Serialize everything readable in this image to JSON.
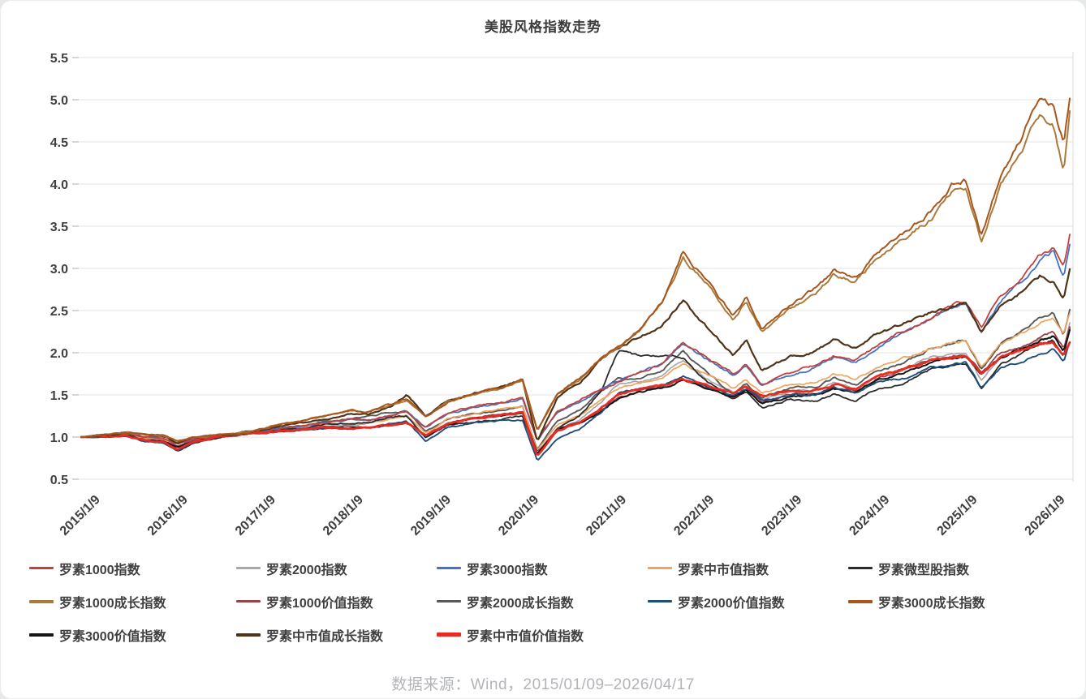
{
  "title": "美股风格指数走势",
  "footer": "数据来源：Wind，2015/01/09–2026/04/17",
  "colors": {
    "title_text": "#3c3c3c",
    "axis_text": "#3f3f3f",
    "gridline": "#e3e3e3",
    "axis_tick": "#c9c9c9",
    "plot_right_border": "#dcdcdc",
    "legend_text": "#3f3f3f",
    "footer_text": "#b2b4b8",
    "background": "#ffffff"
  },
  "chart_data": {
    "type": "line",
    "title": "美股风格指数走势",
    "xlabel": "",
    "ylabel": "",
    "ylim": [
      0.5,
      5.5
    ],
    "y_ticks": [
      0.5,
      1.0,
      1.5,
      2.0,
      2.5,
      3.0,
      3.5,
      4.0,
      4.5,
      5.0,
      5.5
    ],
    "x_range": [
      2015.02,
      2026.29
    ],
    "grid": "horizontal",
    "legend_position": "bottom",
    "x_ticks": [
      {
        "label": "2015/1/9",
        "t": 2015.02
      },
      {
        "label": "2016/1/9",
        "t": 2016.02
      },
      {
        "label": "2017/1/9",
        "t": 2017.02
      },
      {
        "label": "2018/1/9",
        "t": 2018.02
      },
      {
        "label": "2019/1/9",
        "t": 2019.02
      },
      {
        "label": "2020/1/9",
        "t": 2020.02
      },
      {
        "label": "2021/1/9",
        "t": 2021.02
      },
      {
        "label": "2022/1/9",
        "t": 2022.02
      },
      {
        "label": "2023/1/9",
        "t": 2023.02
      },
      {
        "label": "2024/1/9",
        "t": 2024.02
      },
      {
        "label": "2025/1/9",
        "t": 2025.02
      },
      {
        "label": "2026/1/9",
        "t": 2026.02
      }
    ],
    "keypoint_times": [
      2015.02,
      2015.3,
      2015.55,
      2015.75,
      2015.95,
      2016.12,
      2016.3,
      2016.6,
      2016.9,
      2017.2,
      2017.5,
      2017.8,
      2018.1,
      2018.3,
      2018.55,
      2018.73,
      2018.95,
      2019.2,
      2019.5,
      2019.8,
      2020.05,
      2020.22,
      2020.45,
      2020.7,
      2020.95,
      2021.15,
      2021.4,
      2021.65,
      2021.88,
      2022.1,
      2022.45,
      2022.6,
      2022.78,
      2023.1,
      2023.4,
      2023.6,
      2023.85,
      2024.1,
      2024.4,
      2024.7,
      2024.95,
      2025.1,
      2025.28,
      2025.5,
      2025.75,
      2025.95,
      2026.1,
      2026.22,
      2026.29
    ],
    "series": [
      {
        "name": "罗素1000指数",
        "color": "#C0413D",
        "width": 1.8,
        "z": 8,
        "values": [
          1.0,
          1.02,
          1.04,
          1.0,
          0.99,
          0.92,
          0.98,
          1.01,
          1.03,
          1.09,
          1.13,
          1.17,
          1.21,
          1.2,
          1.26,
          1.3,
          1.12,
          1.29,
          1.36,
          1.41,
          1.47,
          0.97,
          1.31,
          1.43,
          1.58,
          1.67,
          1.78,
          1.88,
          2.12,
          1.98,
          1.75,
          1.87,
          1.63,
          1.76,
          1.86,
          1.97,
          1.91,
          2.1,
          2.26,
          2.4,
          2.56,
          2.6,
          2.28,
          2.66,
          2.9,
          3.16,
          3.25,
          2.98,
          3.38
        ]
      },
      {
        "name": "罗素2000指数",
        "color": "#A8A8A8",
        "width": 1.7,
        "z": 0,
        "values": [
          1.0,
          1.03,
          1.04,
          0.97,
          0.95,
          0.84,
          0.94,
          1.0,
          1.06,
          1.09,
          1.1,
          1.14,
          1.15,
          1.17,
          1.23,
          1.26,
          1.0,
          1.17,
          1.22,
          1.25,
          1.29,
          0.78,
          1.08,
          1.2,
          1.42,
          1.62,
          1.66,
          1.72,
          1.9,
          1.72,
          1.52,
          1.62,
          1.45,
          1.55,
          1.56,
          1.65,
          1.58,
          1.72,
          1.8,
          1.95,
          1.98,
          2.0,
          1.68,
          1.95,
          2.05,
          2.15,
          2.2,
          2.0,
          2.35
        ]
      },
      {
        "name": "罗素3000指数",
        "color": "#4472C4",
        "width": 1.8,
        "z": 7,
        "values": [
          1.0,
          1.02,
          1.04,
          1.0,
          0.99,
          0.92,
          0.98,
          1.01,
          1.03,
          1.09,
          1.13,
          1.17,
          1.21,
          1.2,
          1.26,
          1.3,
          1.12,
          1.28,
          1.35,
          1.4,
          1.46,
          0.96,
          1.3,
          1.42,
          1.57,
          1.66,
          1.77,
          1.87,
          2.1,
          1.96,
          1.73,
          1.85,
          1.61,
          1.74,
          1.84,
          1.95,
          1.89,
          2.08,
          2.23,
          2.37,
          2.52,
          2.56,
          2.24,
          2.62,
          2.86,
          3.1,
          3.2,
          2.92,
          3.3
        ]
      },
      {
        "name": "罗素中市值指数",
        "color": "#EFA35D",
        "width": 1.7,
        "z": 2,
        "values": [
          1.0,
          1.02,
          1.03,
          0.98,
          0.97,
          0.88,
          0.96,
          1.0,
          1.04,
          1.08,
          1.1,
          1.14,
          1.16,
          1.16,
          1.22,
          1.25,
          1.05,
          1.22,
          1.29,
          1.33,
          1.38,
          0.84,
          1.15,
          1.26,
          1.44,
          1.58,
          1.65,
          1.72,
          1.88,
          1.76,
          1.58,
          1.68,
          1.52,
          1.62,
          1.64,
          1.74,
          1.68,
          1.83,
          1.93,
          2.05,
          2.12,
          2.15,
          1.85,
          2.1,
          2.22,
          2.35,
          2.42,
          2.22,
          2.46
        ]
      },
      {
        "name": "罗素微型股指数",
        "color": "#2B2B2B",
        "width": 1.8,
        "z": 3,
        "values": [
          1.0,
          1.03,
          1.04,
          0.96,
          0.94,
          0.83,
          0.93,
          0.99,
          1.06,
          1.09,
          1.1,
          1.15,
          1.16,
          1.18,
          1.24,
          1.26,
          1.0,
          1.15,
          1.18,
          1.2,
          1.25,
          0.78,
          1.1,
          1.25,
          1.55,
          2.02,
          1.95,
          1.98,
          1.95,
          1.7,
          1.45,
          1.55,
          1.35,
          1.45,
          1.42,
          1.5,
          1.44,
          1.58,
          1.65,
          1.8,
          1.85,
          1.88,
          1.58,
          1.85,
          1.98,
          2.1,
          2.15,
          1.95,
          2.3
        ]
      },
      {
        "name": "罗素1000成长指数",
        "color": "#AA7B3C",
        "width": 2.0,
        "z": 11,
        "values": [
          1.0,
          1.03,
          1.06,
          1.03,
          1.02,
          0.95,
          1.0,
          1.03,
          1.05,
          1.13,
          1.19,
          1.25,
          1.31,
          1.3,
          1.38,
          1.44,
          1.24,
          1.42,
          1.5,
          1.57,
          1.68,
          1.08,
          1.52,
          1.68,
          1.92,
          2.05,
          2.28,
          2.6,
          3.12,
          2.88,
          2.42,
          2.62,
          2.25,
          2.52,
          2.72,
          2.92,
          2.85,
          3.12,
          3.35,
          3.58,
          3.9,
          3.95,
          3.32,
          4.0,
          4.4,
          4.82,
          4.72,
          4.15,
          4.85
        ]
      },
      {
        "name": "罗素1000价值指数",
        "color": "#9A4249",
        "width": 1.8,
        "z": 4,
        "values": [
          1.0,
          1.0,
          1.01,
          0.97,
          0.96,
          0.89,
          0.96,
          1.0,
          1.04,
          1.07,
          1.09,
          1.12,
          1.12,
          1.12,
          1.16,
          1.19,
          1.03,
          1.16,
          1.23,
          1.27,
          1.3,
          0.82,
          1.1,
          1.18,
          1.32,
          1.46,
          1.55,
          1.6,
          1.68,
          1.62,
          1.48,
          1.57,
          1.42,
          1.5,
          1.52,
          1.58,
          1.55,
          1.7,
          1.8,
          1.9,
          1.96,
          1.98,
          1.78,
          1.98,
          2.08,
          2.18,
          2.24,
          2.05,
          2.3
        ]
      },
      {
        "name": "罗素2000成长指数",
        "color": "#595959",
        "width": 1.9,
        "z": 1,
        "values": [
          1.0,
          1.04,
          1.06,
          0.99,
          0.97,
          0.85,
          0.95,
          1.0,
          1.05,
          1.1,
          1.13,
          1.18,
          1.22,
          1.24,
          1.3,
          1.32,
          1.06,
          1.22,
          1.28,
          1.31,
          1.38,
          0.85,
          1.2,
          1.32,
          1.55,
          1.7,
          1.72,
          1.8,
          2.02,
          1.8,
          1.52,
          1.64,
          1.45,
          1.58,
          1.6,
          1.7,
          1.62,
          1.78,
          1.88,
          2.05,
          2.12,
          2.15,
          1.8,
          2.1,
          2.25,
          2.42,
          2.48,
          2.22,
          2.52
        ]
      },
      {
        "name": "罗素2000价值指数",
        "color": "#1F4E79",
        "width": 1.9,
        "z": 6,
        "values": [
          1.0,
          1.01,
          1.02,
          0.95,
          0.93,
          0.83,
          0.94,
          1.0,
          1.07,
          1.08,
          1.08,
          1.11,
          1.09,
          1.1,
          1.15,
          1.18,
          0.95,
          1.11,
          1.16,
          1.19,
          1.2,
          0.72,
          0.98,
          1.09,
          1.3,
          1.52,
          1.58,
          1.62,
          1.72,
          1.62,
          1.5,
          1.58,
          1.44,
          1.5,
          1.5,
          1.58,
          1.52,
          1.65,
          1.7,
          1.83,
          1.85,
          1.88,
          1.58,
          1.82,
          1.9,
          2.0,
          2.05,
          1.88,
          2.12
        ]
      },
      {
        "name": "罗素3000成长指数",
        "color": "#A8561D",
        "width": 2.0,
        "z": 12,
        "values": [
          1.0,
          1.03,
          1.06,
          1.03,
          1.02,
          0.94,
          1.0,
          1.03,
          1.05,
          1.13,
          1.19,
          1.25,
          1.31,
          1.3,
          1.38,
          1.45,
          1.24,
          1.42,
          1.51,
          1.58,
          1.69,
          1.07,
          1.53,
          1.7,
          1.94,
          2.08,
          2.3,
          2.62,
          3.2,
          2.92,
          2.45,
          2.66,
          2.28,
          2.56,
          2.76,
          2.97,
          2.9,
          3.18,
          3.42,
          3.66,
          4.0,
          4.05,
          3.4,
          4.1,
          4.55,
          5.05,
          4.92,
          4.48,
          5.02
        ]
      },
      {
        "name": "罗素3000价值指数",
        "color": "#151515",
        "width": 2.0,
        "z": 5,
        "values": [
          1.0,
          1.0,
          1.01,
          0.96,
          0.95,
          0.88,
          0.95,
          1.0,
          1.04,
          1.07,
          1.08,
          1.11,
          1.11,
          1.11,
          1.15,
          1.18,
          1.02,
          1.15,
          1.22,
          1.26,
          1.29,
          0.8,
          1.08,
          1.17,
          1.31,
          1.46,
          1.54,
          1.59,
          1.67,
          1.6,
          1.47,
          1.55,
          1.4,
          1.48,
          1.5,
          1.56,
          1.53,
          1.68,
          1.77,
          1.87,
          1.93,
          1.95,
          1.75,
          1.95,
          2.05,
          2.15,
          2.2,
          2.02,
          2.26
        ]
      },
      {
        "name": "罗素中市值成长指数",
        "color": "#503418",
        "width": 2.2,
        "z": 10,
        "values": [
          1.0,
          1.02,
          1.05,
          1.02,
          1.01,
          0.93,
          0.99,
          1.02,
          1.04,
          1.11,
          1.16,
          1.22,
          1.28,
          1.28,
          1.36,
          1.5,
          1.25,
          1.44,
          1.52,
          1.58,
          1.68,
          0.95,
          1.48,
          1.65,
          1.92,
          2.05,
          2.2,
          2.35,
          2.62,
          2.35,
          1.98,
          2.15,
          1.78,
          1.95,
          2.02,
          2.15,
          2.05,
          2.22,
          2.35,
          2.48,
          2.55,
          2.58,
          2.25,
          2.55,
          2.72,
          2.92,
          2.85,
          2.62,
          3.0
        ]
      },
      {
        "name": "罗素中市值价值指数",
        "color": "#EA2A21",
        "width": 2.7,
        "z": 9,
        "values": [
          1.0,
          1.0,
          1.01,
          0.96,
          0.95,
          0.86,
          0.95,
          1.0,
          1.05,
          1.07,
          1.08,
          1.11,
          1.1,
          1.1,
          1.14,
          1.17,
          1.02,
          1.16,
          1.23,
          1.27,
          1.3,
          0.78,
          1.08,
          1.17,
          1.35,
          1.5,
          1.57,
          1.61,
          1.68,
          1.62,
          1.52,
          1.6,
          1.48,
          1.55,
          1.56,
          1.62,
          1.58,
          1.72,
          1.8,
          1.9,
          1.95,
          1.97,
          1.75,
          1.96,
          2.02,
          2.1,
          2.12,
          1.98,
          2.12
        ]
      }
    ]
  }
}
